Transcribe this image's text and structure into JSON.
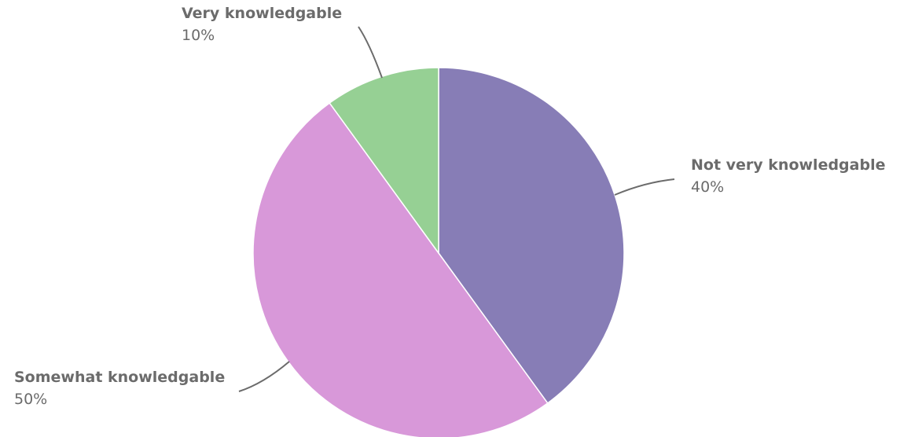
{
  "chart_data": {
    "type": "pie",
    "title": "",
    "start_angle_deg": 0,
    "direction": "clockwise",
    "slices": [
      {
        "label": "Not very knowledgable",
        "value": 40,
        "display": "40%",
        "color": "#877DB6"
      },
      {
        "label": "Somewhat knowledgable",
        "value": 50,
        "display": "50%",
        "color": "#D898D9"
      },
      {
        "label": "Very knowledgable",
        "value": 10,
        "display": "10%",
        "color": "#96D094"
      }
    ]
  }
}
